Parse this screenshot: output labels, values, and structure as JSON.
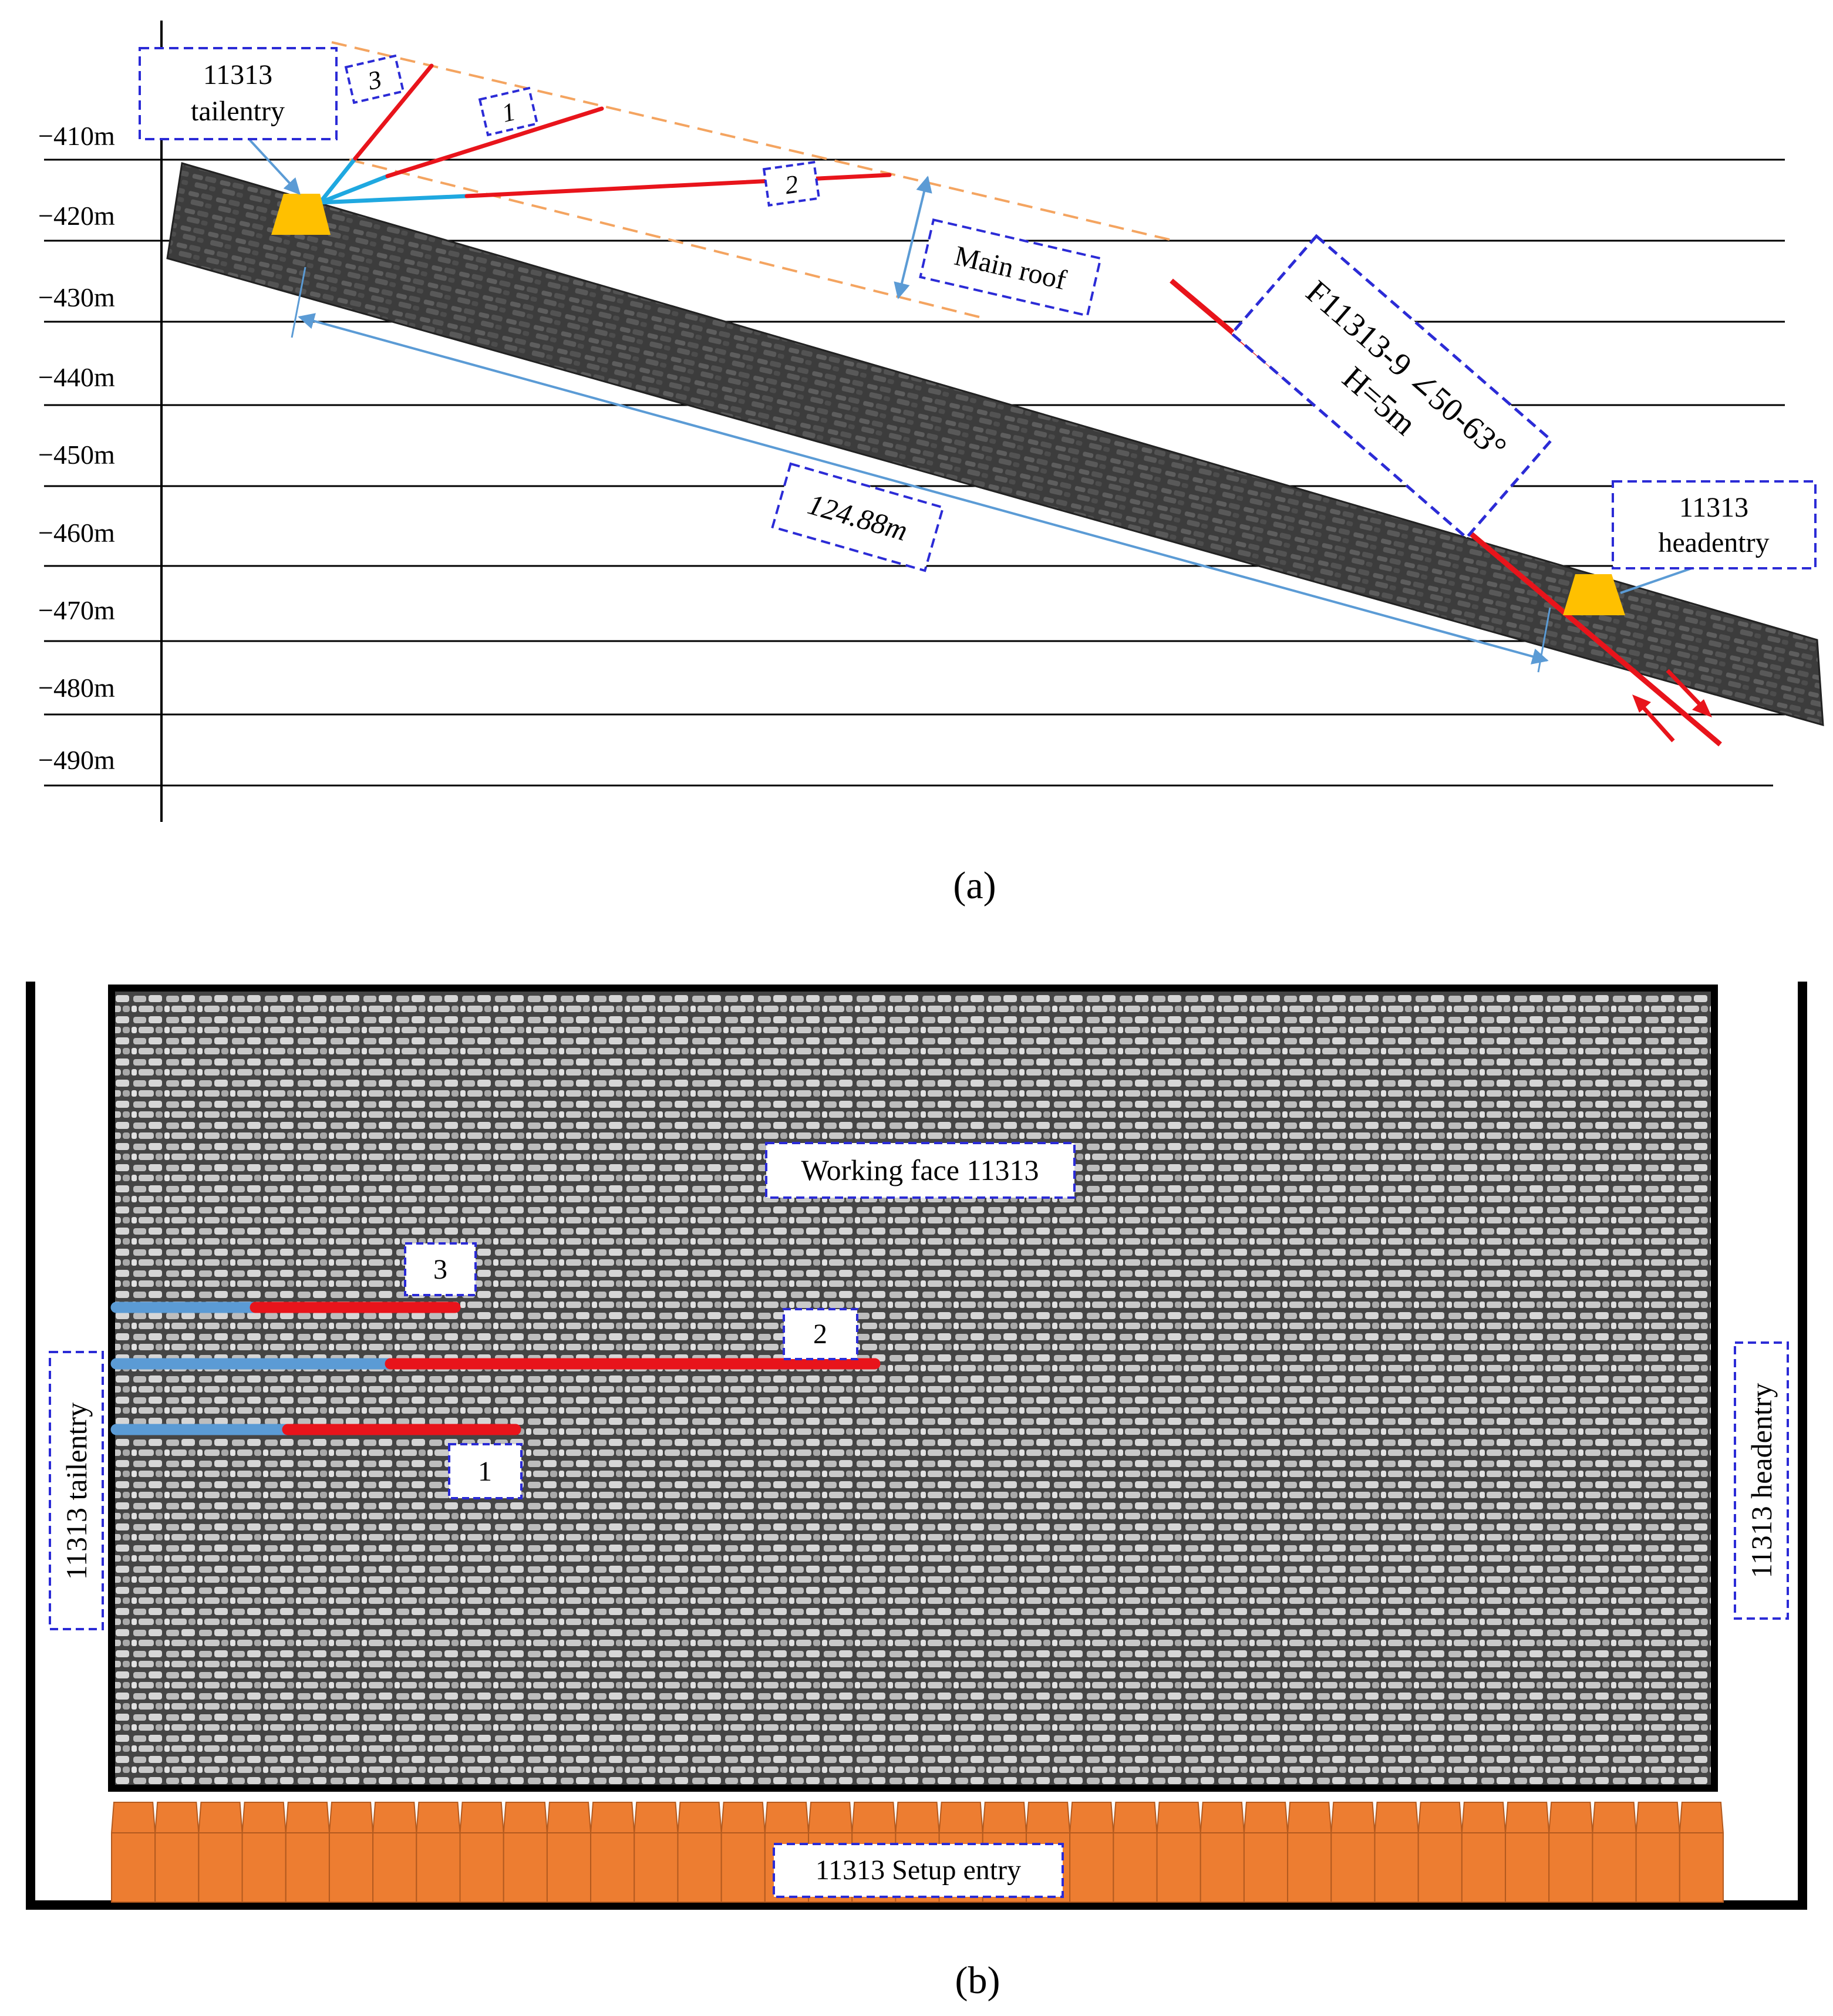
{
  "panel_a": {
    "depth_labels": [
      "−410m",
      "−420m",
      "−430m",
      "−440m",
      "−450m",
      "−460m",
      "−470m",
      "−480m",
      "−490m"
    ],
    "tailentry_label": [
      "11313",
      "tailentry"
    ],
    "headentry_label": [
      "11313",
      "headentry"
    ],
    "hole_labels": [
      "3",
      "1",
      "2"
    ],
    "main_roof_label": "Main roof",
    "fault_label": [
      "F11313-9 ∠50-63°",
      "H=5m"
    ],
    "distance_label": "124.88m",
    "caption": "(a)"
  },
  "panel_b": {
    "working_face_label": "Working face 11313",
    "hole_labels": [
      "3",
      "2",
      "1"
    ],
    "tailentry_label": "11313 tailentry",
    "headentry_label": "11313 headentry",
    "setup_entry_label": "11313 Setup entry",
    "caption": "(b)"
  },
  "colors": {
    "borehole_red": "#e8141b",
    "borehole_blue": "#5b9bd5",
    "borehole_cyan": "#1fa8e0",
    "label_border": "#2b2bd6",
    "entry_yellow": "#ffc000",
    "setup_orange": "#ed7d31",
    "projection_orange": "#f4a460",
    "rock_dark": "#3c3c3c"
  }
}
